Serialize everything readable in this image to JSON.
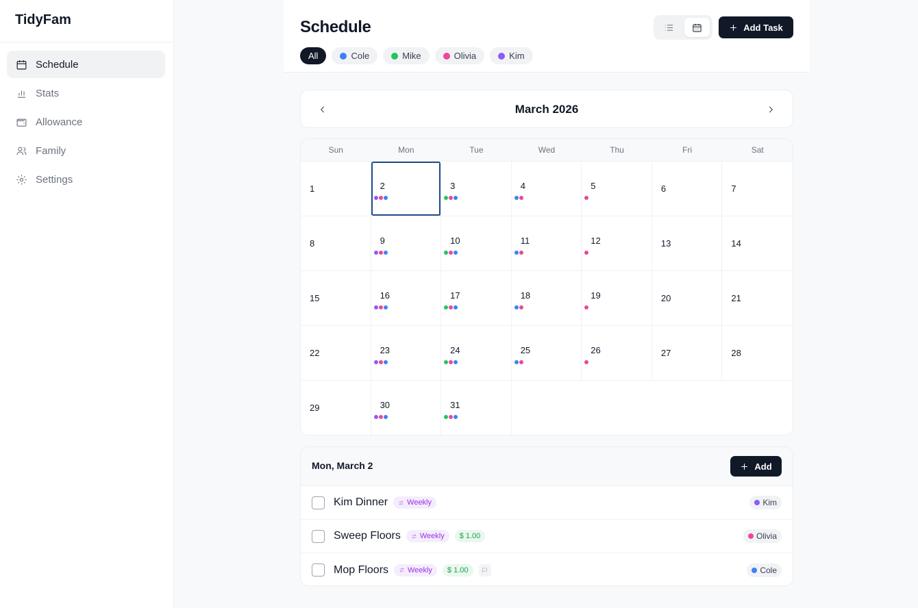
{
  "sidebar": {
    "brand": "TidyFam",
    "items": [
      {
        "label": "Schedule",
        "icon": "calendar-icon",
        "active": true
      },
      {
        "label": "Stats",
        "icon": "bar-chart-icon",
        "active": false
      },
      {
        "label": "Allowance",
        "icon": "wallet-icon",
        "active": false
      },
      {
        "label": "Family",
        "icon": "users-icon",
        "active": false
      },
      {
        "label": "Settings",
        "icon": "gear-icon",
        "active": false
      }
    ]
  },
  "header": {
    "title": "Schedule",
    "add_task_label": "Add Task",
    "filters": [
      {
        "label": "All",
        "active": true
      },
      {
        "label": "Cole",
        "color": "#3b82f6"
      },
      {
        "label": "Mike",
        "color": "#22c55e"
      },
      {
        "label": "Olivia",
        "color": "#ec4899"
      },
      {
        "label": "Kim",
        "color": "#8b5cf6"
      }
    ]
  },
  "colors": {
    "Cole": "#3b82f6",
    "Mike": "#22c55e",
    "Olivia": "#ec4899",
    "Kim": "#8b5cf6",
    "accent_dark": "#111827",
    "selected_border": "#1f4d8c"
  },
  "calendar": {
    "month_label": "March 2026",
    "weekdays": [
      "Sun",
      "Mon",
      "Tue",
      "Wed",
      "Thu",
      "Fri",
      "Sat"
    ],
    "selected_day": 2,
    "days": [
      {
        "d": 1,
        "dots": []
      },
      {
        "d": 2,
        "dots": [
          "Kim",
          "Olivia",
          "Cole"
        ]
      },
      {
        "d": 3,
        "dots": [
          "Mike",
          "Olivia",
          "Cole"
        ]
      },
      {
        "d": 4,
        "dots": [
          "Cole",
          "Olivia"
        ]
      },
      {
        "d": 5,
        "dots": [
          "Olivia"
        ]
      },
      {
        "d": 6,
        "dots": []
      },
      {
        "d": 7,
        "dots": []
      },
      {
        "d": 8,
        "dots": []
      },
      {
        "d": 9,
        "dots": [
          "Kim",
          "Olivia",
          "Cole"
        ]
      },
      {
        "d": 10,
        "dots": [
          "Mike",
          "Olivia",
          "Cole"
        ]
      },
      {
        "d": 11,
        "dots": [
          "Cole",
          "Olivia"
        ]
      },
      {
        "d": 12,
        "dots": [
          "Olivia"
        ]
      },
      {
        "d": 13,
        "dots": []
      },
      {
        "d": 14,
        "dots": []
      },
      {
        "d": 15,
        "dots": []
      },
      {
        "d": 16,
        "dots": [
          "Kim",
          "Olivia",
          "Cole"
        ]
      },
      {
        "d": 17,
        "dots": [
          "Mike",
          "Olivia",
          "Cole"
        ]
      },
      {
        "d": 18,
        "dots": [
          "Cole",
          "Olivia"
        ]
      },
      {
        "d": 19,
        "dots": [
          "Olivia"
        ]
      },
      {
        "d": 20,
        "dots": []
      },
      {
        "d": 21,
        "dots": []
      },
      {
        "d": 22,
        "dots": []
      },
      {
        "d": 23,
        "dots": [
          "Kim",
          "Olivia",
          "Cole"
        ]
      },
      {
        "d": 24,
        "dots": [
          "Mike",
          "Olivia",
          "Cole"
        ]
      },
      {
        "d": 25,
        "dots": [
          "Cole",
          "Olivia"
        ]
      },
      {
        "d": 26,
        "dots": [
          "Olivia"
        ]
      },
      {
        "d": 27,
        "dots": []
      },
      {
        "d": 28,
        "dots": []
      },
      {
        "d": 29,
        "dots": []
      },
      {
        "d": 30,
        "dots": [
          "Kim",
          "Olivia",
          "Cole"
        ]
      },
      {
        "d": 31,
        "dots": [
          "Mike",
          "Olivia",
          "Cole"
        ]
      }
    ]
  },
  "tasks_panel": {
    "date_label": "Mon, March 2",
    "add_label": "Add",
    "tasks": [
      {
        "name": "Kim Dinner",
        "recurrence": "Weekly",
        "amount": null,
        "has_note": false,
        "assignee": "Kim"
      },
      {
        "name": "Sweep Floors",
        "recurrence": "Weekly",
        "amount": "$ 1.00",
        "has_note": false,
        "assignee": "Olivia"
      },
      {
        "name": "Mop Floors",
        "recurrence": "Weekly",
        "amount": "$ 1.00",
        "has_note": true,
        "assignee": "Cole"
      }
    ]
  }
}
